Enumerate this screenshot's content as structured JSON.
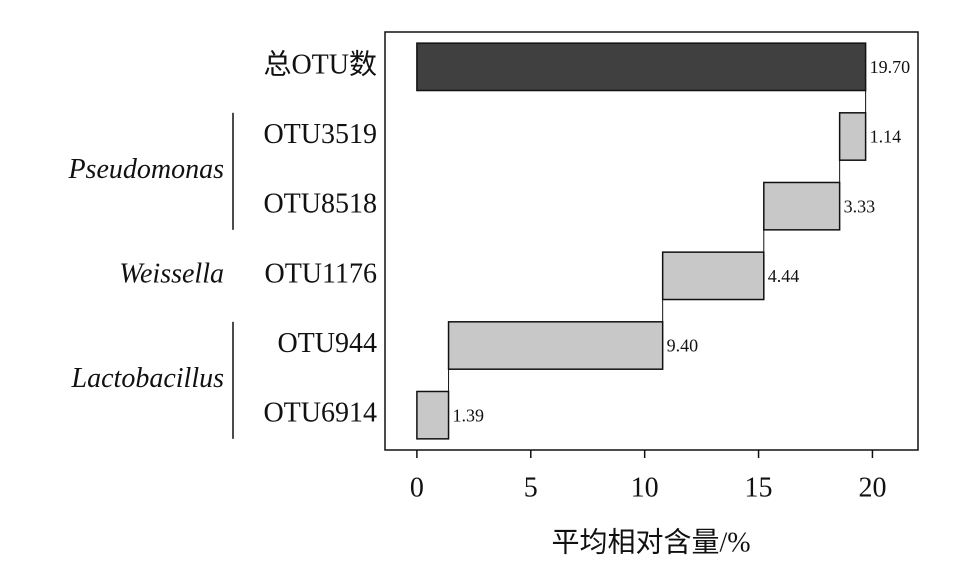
{
  "chart_data": {
    "type": "waterfall",
    "categories": [
      "总OTU数",
      "OTU3519",
      "OTU8518",
      "OTU1176",
      "OTU944",
      "OTU6914"
    ],
    "values": [
      19.7,
      1.14,
      3.33,
      4.44,
      9.4,
      1.39
    ],
    "value_labels": [
      "19.70",
      "1.14",
      "3.33",
      "4.44",
      "9.40",
      "1.39"
    ],
    "total_color": "#404040",
    "color": "#c8c8c8",
    "groups": [
      {
        "name": "Pseudomonas",
        "members": [
          "OTU3519",
          "OTU8518"
        ]
      },
      {
        "name": "Weissella",
        "members": [
          "OTU1176"
        ]
      },
      {
        "name": "Lactobacillus",
        "members": [
          "OTU944",
          "OTU6914"
        ]
      }
    ],
    "xlabel": "平均相对含量/%",
    "xlim": [
      -1.4,
      22
    ],
    "xticks": [
      0,
      5,
      10,
      15,
      20
    ]
  }
}
